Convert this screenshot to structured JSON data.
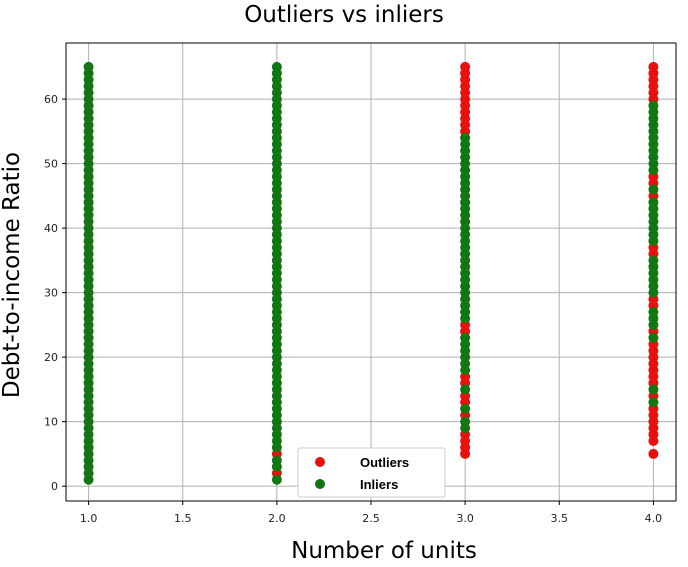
{
  "chart_data": {
    "type": "scatter",
    "title": "Outliers vs inliers",
    "xlabel": "Number of units",
    "ylabel": "Debt-to-income Ratio",
    "xlim": [
      0.88,
      4.12
    ],
    "ylim": [
      -2.3,
      68.7
    ],
    "x_ticks": [
      "1.0",
      "1.5",
      "2.0",
      "2.5",
      "3.0",
      "3.5",
      "4.0"
    ],
    "y_ticks": [
      "0",
      "10",
      "20",
      "30",
      "40",
      "50",
      "60"
    ],
    "grid": true,
    "legend_position": "bottom-center",
    "series": [
      {
        "name": "Outliers",
        "color": "#e8110f",
        "points": [
          [
            2,
            2
          ],
          [
            2,
            5
          ],
          [
            3,
            5
          ],
          [
            3,
            6
          ],
          [
            3,
            7
          ],
          [
            3,
            8
          ],
          [
            3,
            11
          ],
          [
            3,
            13
          ],
          [
            3,
            14
          ],
          [
            3,
            16
          ],
          [
            3,
            17
          ],
          [
            3,
            24
          ],
          [
            3,
            25
          ],
          [
            3,
            55
          ],
          [
            3,
            56
          ],
          [
            3,
            57
          ],
          [
            3,
            58
          ],
          [
            3,
            59
          ],
          [
            3,
            60
          ],
          [
            3,
            61
          ],
          [
            3,
            62
          ],
          [
            3,
            63
          ],
          [
            3,
            64
          ],
          [
            3,
            65
          ],
          [
            4,
            5
          ],
          [
            4,
            7
          ],
          [
            4,
            8
          ],
          [
            4,
            9
          ],
          [
            4,
            10
          ],
          [
            4,
            11
          ],
          [
            4,
            12
          ],
          [
            4,
            14
          ],
          [
            4,
            16
          ],
          [
            4,
            17
          ],
          [
            4,
            18
          ],
          [
            4,
            19
          ],
          [
            4,
            20
          ],
          [
            4,
            21
          ],
          [
            4,
            22
          ],
          [
            4,
            24
          ],
          [
            4,
            28
          ],
          [
            4,
            29
          ],
          [
            4,
            36
          ],
          [
            4,
            37
          ],
          [
            4,
            45
          ],
          [
            4,
            47
          ],
          [
            4,
            48
          ],
          [
            4,
            60
          ],
          [
            4,
            61
          ],
          [
            4,
            62
          ],
          [
            4,
            63
          ],
          [
            4,
            64
          ],
          [
            4,
            65
          ]
        ]
      },
      {
        "name": "Inliers",
        "color": "#127712",
        "segments": [
          [
            1,
            1,
            65
          ],
          [
            2,
            1,
            1
          ],
          [
            2,
            3,
            4
          ],
          [
            2,
            6,
            65
          ],
          [
            3,
            9,
            10
          ],
          [
            3,
            12,
            12
          ],
          [
            3,
            15,
            15
          ],
          [
            3,
            18,
            23
          ],
          [
            3,
            26,
            54
          ],
          [
            4,
            13,
            13
          ],
          [
            4,
            15,
            15
          ],
          [
            4,
            23,
            23
          ],
          [
            4,
            25,
            27
          ],
          [
            4,
            30,
            35
          ],
          [
            4,
            38,
            44
          ],
          [
            4,
            46,
            46
          ],
          [
            4,
            49,
            59
          ]
        ]
      }
    ]
  }
}
